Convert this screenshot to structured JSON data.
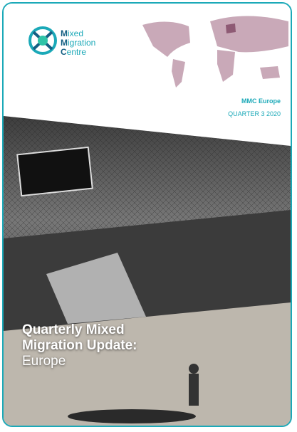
{
  "logo": {
    "lines": [
      "Mixed",
      "Migration",
      "Centre"
    ]
  },
  "header": {
    "org": "MMC Europe",
    "period": "QUARTER 3 2020"
  },
  "cover": {
    "title_lines": [
      "Quarterly Mixed",
      "Migration Update:"
    ],
    "subtitle": "Europe"
  }
}
